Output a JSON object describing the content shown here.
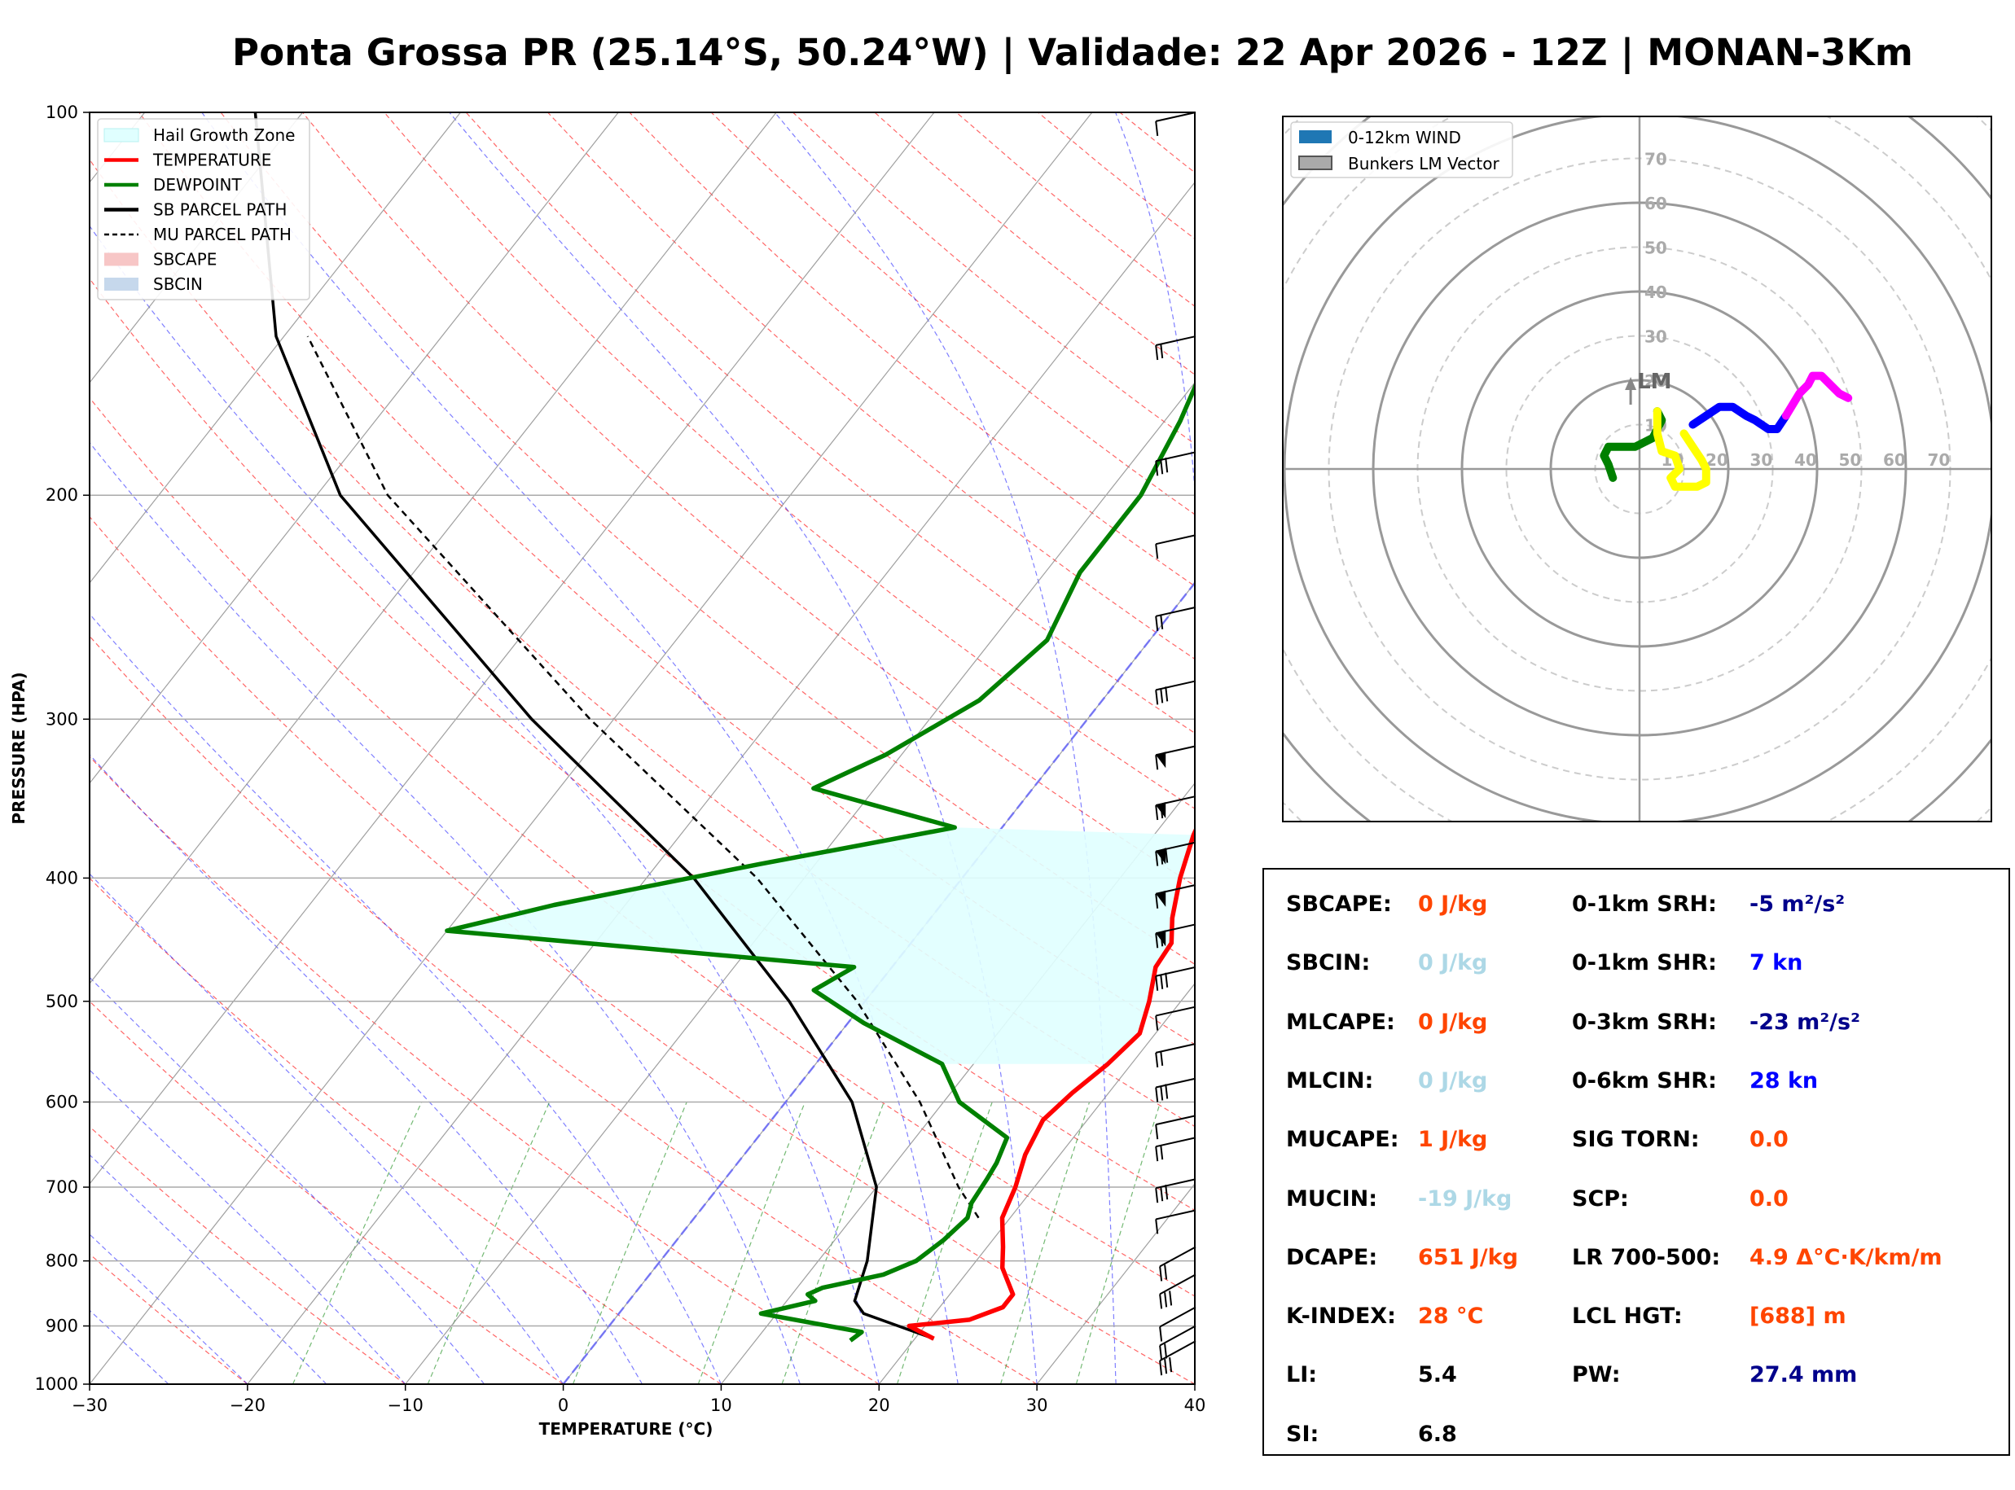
{
  "title": "Ponta Grossa PR (25.14°S, 50.24°W) | Validade: 22 Apr 2026 - 12Z | MONAN-3Km",
  "colors": {
    "temperature": "#ff0000",
    "dewpoint": "#008000",
    "sb_parcel": "#000000",
    "mu_parcel": "#000000",
    "hail_zone": "#e0ffff",
    "param_label": "#000000",
    "param_orange": "#ff4500",
    "param_lightblue": "#add8e6",
    "param_navy": "#00008b",
    "param_blue": "#0000ff"
  },
  "skewt": {
    "xlabel": "TEMPERATURE (°C)",
    "ylabel": "PRESSURE (HPA)",
    "x_ticks": [
      "−30",
      "−20",
      "−10",
      "0",
      "10",
      "20",
      "30",
      "40"
    ],
    "y_ticks": [
      "100",
      "200",
      "300",
      "400",
      "500",
      "600",
      "700",
      "800",
      "900",
      "1000"
    ],
    "legend": [
      {
        "label": "Hail Growth Zone",
        "style": "patch",
        "color": "#e0ffff"
      },
      {
        "label": "TEMPERATURE",
        "style": "line",
        "color": "#ff0000"
      },
      {
        "label": "DEWPOINT",
        "style": "line",
        "color": "#008000"
      },
      {
        "label": "SB PARCEL PATH",
        "style": "line",
        "color": "#000000"
      },
      {
        "label": "MU PARCEL PATH",
        "style": "dashed",
        "color": "#000000"
      },
      {
        "label": "SBCAPE",
        "style": "patch",
        "color": "#f7c6c6"
      },
      {
        "label": "SBCIN",
        "style": "patch",
        "color": "#c6d8ec"
      }
    ]
  },
  "chart_data": [
    {
      "type": "line",
      "title": "",
      "xlabel": "TEMPERATURE (°C)",
      "ylabel": "PRESSURE (HPA)",
      "xlim": [
        -30,
        40
      ],
      "ylim": [
        1000,
        100
      ],
      "y_scale": "log",
      "skew": "skew-T",
      "series": [
        {
          "name": "TEMPERATURE",
          "points": [
            [
              921,
              21.2
            ],
            [
              900,
              19.0
            ],
            [
              890,
              22.5
            ],
            [
              870,
              24.0
            ],
            [
              850,
              24.0
            ],
            [
              810,
              22.0
            ],
            [
              780,
              21.0
            ],
            [
              740,
              19.5
            ],
            [
              700,
              18.8
            ],
            [
              660,
              17.8
            ],
            [
              620,
              17.2
            ],
            [
              590,
              17.7
            ],
            [
              560,
              18.5
            ],
            [
              530,
              19.0
            ],
            [
              500,
              18.0
            ],
            [
              470,
              16.7
            ],
            [
              450,
              16.5
            ],
            [
              430,
              15.3
            ],
            [
              400,
              13.8
            ],
            [
              370,
              12.5
            ],
            [
              330,
              11.2
            ],
            [
              300,
              9.5
            ],
            [
              280,
              7.4
            ],
            [
              250,
              5.2
            ],
            [
              220,
              3.4
            ],
            [
              200,
              1.5
            ],
            [
              175,
              0.3
            ],
            [
              160,
              0.2
            ],
            [
              130,
              1.6
            ],
            [
              115,
              2.0
            ],
            [
              100,
              6.0
            ]
          ]
        },
        {
          "name": "DEWPOINT",
          "points": [
            [
              924,
              16.0
            ],
            [
              910,
              16.3
            ],
            [
              880,
              9.0
            ],
            [
              860,
              11.8
            ],
            [
              850,
              11.0
            ],
            [
              840,
              11.6
            ],
            [
              820,
              14.8
            ],
            [
              800,
              16.2
            ],
            [
              770,
              16.9
            ],
            [
              740,
              17.3
            ],
            [
              720,
              16.8
            ],
            [
              690,
              16.6
            ],
            [
              670,
              16.4
            ],
            [
              640,
              15.8
            ],
            [
              600,
              11.0
            ],
            [
              560,
              8.0
            ],
            [
              520,
              1.0
            ],
            [
              490,
              -3.8
            ],
            [
              470,
              -2.4
            ],
            [
              440,
              -30.0
            ],
            [
              420,
              -24.5
            ],
            [
              390,
              -13.5
            ],
            [
              365,
              -3.0
            ],
            [
              340,
              -13.9
            ],
            [
              320,
              -11.0
            ],
            [
              290,
              -7.8
            ],
            [
              260,
              -6.5
            ],
            [
              230,
              -7.8
            ],
            [
              200,
              -7.8
            ],
            [
              175,
              -9.0
            ],
            [
              155,
              -10.5
            ],
            [
              130,
              -11.0
            ],
            [
              115,
              -9.8
            ],
            [
              100,
              -8.5
            ]
          ]
        },
        {
          "name": "SB PARCEL PATH",
          "points": [
            [
              921,
              21.2
            ],
            [
              880,
              15.5
            ],
            [
              860,
              14.3
            ],
            [
              800,
              13.1
            ],
            [
              700,
              10.0
            ],
            [
              600,
              4.2
            ],
            [
              500,
              -4.8
            ],
            [
              400,
              -17.0
            ],
            [
              300,
              -35.2
            ],
            [
              200,
              -58.5
            ],
            [
              150,
              -70.5
            ],
            [
              100,
              -83.0
            ]
          ]
        },
        {
          "name": "MU PARCEL PATH",
          "points": [
            [
              740,
              18.0
            ],
            [
              700,
              15.2
            ],
            [
              600,
              8.5
            ],
            [
              500,
              -0.5
            ],
            [
              400,
              -13.0
            ],
            [
              300,
              -31.5
            ],
            [
              200,
              -55.5
            ],
            [
              150,
              -68.5
            ]
          ]
        }
      ],
      "hail_growth_zone": {
        "top_hpa": 365,
        "bottom_hpa": 560
      }
    },
    {
      "type": "line",
      "title": "",
      "subtype": "hodograph",
      "xlim": [
        -80,
        80
      ],
      "ylim": [
        -80,
        80
      ],
      "ring_labels": [
        "10",
        "20",
        "30",
        "40",
        "50",
        "60",
        "70"
      ],
      "axis_labels_y": [
        "10",
        "20",
        "30",
        "40",
        "50",
        "60",
        "70"
      ],
      "legend": [
        "0-12km WIND",
        "Bunkers LM Vector"
      ],
      "bunkers_lm_label": "LM",
      "bunkers_lm_vector": [
        -2,
        20
      ],
      "series": [
        {
          "name": "0-3km",
          "color": "#008000",
          "points": [
            [
              -6,
              -2
            ],
            [
              -7,
              1
            ],
            [
              -8,
              3
            ],
            [
              -7,
              5
            ],
            [
              -5,
              5
            ],
            [
              -3,
              5
            ],
            [
              -1,
              5
            ],
            [
              1,
              6
            ],
            [
              3,
              7
            ],
            [
              4,
              9
            ],
            [
              5,
              11
            ],
            [
              4,
              13
            ]
          ]
        },
        {
          "name": "3-6km",
          "color": "#ffff00",
          "points": [
            [
              4,
              13
            ],
            [
              4,
              8
            ],
            [
              5,
              4
            ],
            [
              8,
              3
            ],
            [
              9,
              0
            ],
            [
              7,
              -2
            ],
            [
              8,
              -4
            ],
            [
              10,
              -4
            ],
            [
              13,
              -4
            ],
            [
              15,
              -3
            ],
            [
              15,
              0
            ],
            [
              14,
              2
            ],
            [
              12,
              5
            ],
            [
              10,
              8
            ]
          ]
        },
        {
          "name": "6-9km",
          "color": "#0000ff",
          "points": [
            [
              12,
              10
            ],
            [
              15,
              12
            ],
            [
              18,
              14
            ],
            [
              21,
              14
            ],
            [
              24,
              12
            ],
            [
              26,
              11
            ],
            [
              29,
              9
            ],
            [
              31,
              9
            ],
            [
              33,
              12
            ]
          ]
        },
        {
          "name": "9-12km",
          "color": "#ff00ff",
          "points": [
            [
              33,
              12
            ],
            [
              36,
              17
            ],
            [
              38,
              19
            ],
            [
              39,
              21
            ],
            [
              41,
              21
            ],
            [
              43,
              19
            ],
            [
              45,
              17
            ],
            [
              47,
              16
            ]
          ]
        }
      ]
    }
  ],
  "params": {
    "left": [
      {
        "label": "SBCAPE:",
        "value": "0 J/kg",
        "color": "#ff4500"
      },
      {
        "label": "SBCIN:",
        "value": "0 J/kg",
        "color": "#add8e6"
      },
      {
        "label": "MLCAPE:",
        "value": "0 J/kg",
        "color": "#ff4500"
      },
      {
        "label": "MLCIN:",
        "value": "0 J/kg",
        "color": "#add8e6"
      },
      {
        "label": "MUCAPE:",
        "value": "1 J/kg",
        "color": "#ff4500"
      },
      {
        "label": "MUCIN:",
        "value": "-19 J/kg",
        "color": "#add8e6"
      },
      {
        "label": "DCAPE:",
        "value": "651 J/kg",
        "color": "#ff4500"
      },
      {
        "label": "K-INDEX:",
        "value": "28 °C",
        "color": "#ff4500"
      },
      {
        "label": "LI:",
        "value": "5.4",
        "color": "#000000"
      },
      {
        "label": "SI:",
        "value": "6.8",
        "color": "#000000"
      }
    ],
    "right": [
      {
        "label": "0-1km SRH:",
        "value": "-5 m²/s²",
        "color": "#00008b"
      },
      {
        "label": "0-1km SHR:",
        "value": "7 kn",
        "color": "#0000ff"
      },
      {
        "label": "0-3km SRH:",
        "value": "-23 m²/s²",
        "color": "#00008b"
      },
      {
        "label": "0-6km SHR:",
        "value": "28 kn",
        "color": "#0000ff"
      },
      {
        "label": "SIG TORN:",
        "value": "0.0",
        "color": "#ff4500"
      },
      {
        "label": "SCP:",
        "value": "0.0",
        "color": "#ff4500"
      },
      {
        "label": "LR 700-500:",
        "value": "4.9 Δ°C·K/km/m",
        "color": "#ff4500"
      },
      {
        "label": "LCL HGT:",
        "value": "[688] m",
        "color": "#ff4500"
      },
      {
        "label": "PW:",
        "value": "27.4 mm",
        "color": "#00008b"
      }
    ]
  }
}
